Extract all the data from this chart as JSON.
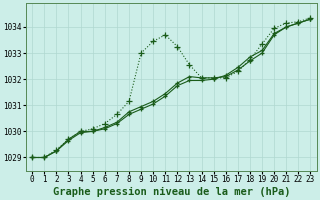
{
  "title": "Graphe pression niveau de la mer (hPa)",
  "background_color": "#cceee8",
  "grid_color": "#b0d8d0",
  "line_color": "#1a5c1a",
  "x_ticks": [
    0,
    1,
    2,
    3,
    4,
    5,
    6,
    7,
    8,
    9,
    10,
    11,
    12,
    13,
    14,
    15,
    16,
    17,
    18,
    19,
    20,
    21,
    22,
    23
  ],
  "y_ticks": [
    1029,
    1030,
    1031,
    1032,
    1033,
    1034
  ],
  "ylim": [
    1028.5,
    1034.9
  ],
  "xlim": [
    -0.5,
    23.5
  ],
  "line1_x": [
    0,
    1,
    2,
    3,
    4,
    5,
    6,
    7,
    8,
    9,
    10,
    11,
    12,
    13,
    14,
    15,
    16,
    17,
    18,
    19,
    20,
    21,
    22,
    23
  ],
  "line1_y": [
    1029.0,
    1029.0,
    1029.3,
    1029.7,
    1030.0,
    1030.1,
    1030.3,
    1030.65,
    1031.15,
    1033.0,
    1033.45,
    1033.7,
    1033.25,
    1032.55,
    1032.05,
    1032.05,
    1032.05,
    1032.3,
    1032.75,
    1033.35,
    1033.95,
    1034.15,
    1034.2,
    1034.35
  ],
  "line2_x": [
    0,
    1,
    2,
    3,
    4,
    5,
    6,
    7,
    8,
    9,
    10,
    11,
    12,
    13,
    14,
    15,
    16,
    17,
    18,
    19,
    20,
    21,
    22,
    23
  ],
  "line2_y": [
    1029.0,
    1029.0,
    1029.25,
    1029.7,
    1030.0,
    1030.0,
    1030.15,
    1030.35,
    1030.75,
    1030.95,
    1031.15,
    1031.45,
    1031.85,
    1032.1,
    1032.05,
    1032.05,
    1032.1,
    1032.35,
    1032.7,
    1033.0,
    1033.7,
    1034.0,
    1034.15,
    1034.3
  ],
  "line3_x": [
    0,
    1,
    2,
    3,
    4,
    5,
    6,
    7,
    8,
    9,
    10,
    11,
    12,
    13,
    14,
    15,
    16,
    17,
    18,
    19,
    20,
    21,
    22,
    23
  ],
  "line3_y": [
    1029.0,
    1029.0,
    1029.25,
    1029.65,
    1029.95,
    1030.0,
    1030.1,
    1030.3,
    1030.65,
    1030.85,
    1031.05,
    1031.35,
    1031.75,
    1031.95,
    1031.95,
    1032.0,
    1032.15,
    1032.45,
    1032.85,
    1033.1,
    1033.75,
    1034.0,
    1034.15,
    1034.3
  ],
  "title_fontsize": 7.5,
  "tick_fontsize": 5.5
}
